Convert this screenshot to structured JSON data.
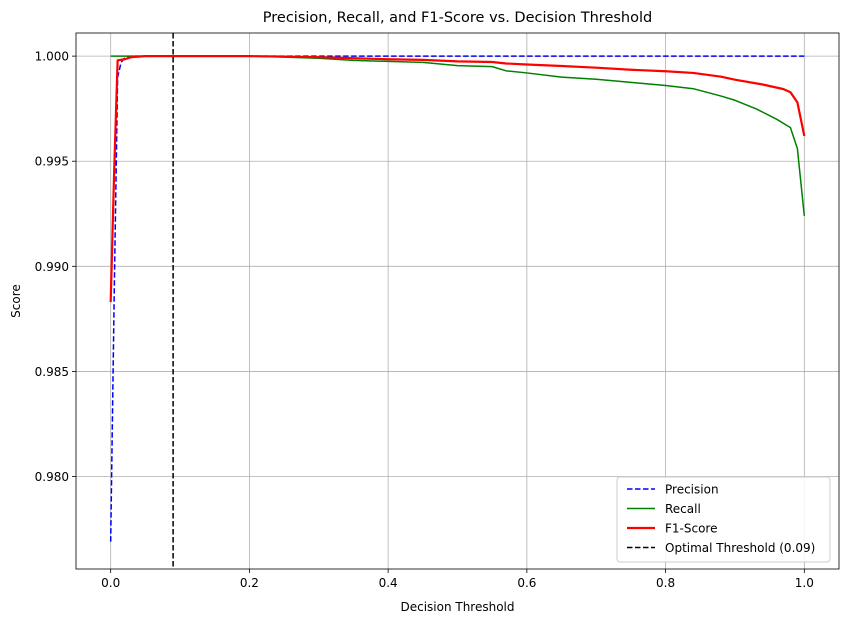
{
  "chart_data": {
    "type": "line",
    "title": "Precision, Recall, and F1-Score vs. Decision Threshold",
    "xlabel": "Decision Threshold",
    "ylabel": "Score",
    "xlim": [
      -0.05,
      1.05
    ],
    "ylim": [
      0.9756,
      1.0011
    ],
    "xticks": [
      0.0,
      0.2,
      0.4,
      0.6,
      0.8,
      1.0
    ],
    "xtick_labels": [
      "0.0",
      "0.2",
      "0.4",
      "0.6",
      "0.8",
      "1.0"
    ],
    "yticks": [
      0.98,
      0.985,
      0.99,
      0.995,
      1.0
    ],
    "ytick_labels": [
      "0.980",
      "0.985",
      "0.990",
      "0.995",
      "1.000"
    ],
    "grid": true,
    "legend_position": "bottom-right",
    "series": [
      {
        "name": "Precision",
        "color": "#0000ff",
        "style": "dashed",
        "x": [
          0.0,
          0.005,
          0.01,
          0.015,
          0.02,
          0.03,
          0.05,
          0.1,
          0.2,
          0.4,
          0.6,
          0.8,
          1.0
        ],
        "y": [
          0.9769,
          0.9885,
          0.999,
          0.9997,
          0.9999,
          1.0,
          1.0,
          1.0,
          1.0,
          1.0,
          1.0,
          1.0,
          1.0
        ]
      },
      {
        "name": "Recall",
        "color": "#008000",
        "style": "solid",
        "x": [
          0.0,
          0.05,
          0.1,
          0.15,
          0.2,
          0.25,
          0.3,
          0.35,
          0.4,
          0.45,
          0.5,
          0.55,
          0.57,
          0.6,
          0.65,
          0.7,
          0.75,
          0.8,
          0.84,
          0.88,
          0.9,
          0.93,
          0.96,
          0.98,
          0.99,
          1.0
        ],
        "y": [
          1.0,
          1.0,
          1.0,
          1.0,
          1.0,
          0.99995,
          0.9999,
          0.9998,
          0.99975,
          0.9997,
          0.99955,
          0.9995,
          0.9993,
          0.9992,
          0.999,
          0.9989,
          0.99875,
          0.9986,
          0.99845,
          0.9981,
          0.9979,
          0.9975,
          0.997,
          0.9966,
          0.9956,
          0.9924
        ]
      },
      {
        "name": "F1-Score",
        "color": "#ff0000",
        "style": "solid",
        "x": [
          0.0,
          0.005,
          0.01,
          0.02,
          0.03,
          0.05,
          0.1,
          0.2,
          0.25,
          0.3,
          0.35,
          0.4,
          0.45,
          0.5,
          0.55,
          0.57,
          0.6,
          0.65,
          0.7,
          0.75,
          0.8,
          0.84,
          0.88,
          0.9,
          0.94,
          0.97,
          0.98,
          0.99,
          1.0
        ],
        "y": [
          0.9883,
          0.9945,
          0.9998,
          0.99985,
          0.99995,
          1.0,
          1.0,
          1.0,
          0.99998,
          0.99995,
          0.9999,
          0.99985,
          0.99982,
          0.99975,
          0.99972,
          0.99965,
          0.9996,
          0.99953,
          0.99945,
          0.99935,
          0.99928,
          0.9992,
          0.99902,
          0.99888,
          0.99865,
          0.99843,
          0.99828,
          0.9978,
          0.9962
        ]
      }
    ],
    "vlines": [
      {
        "name": "Optimal Threshold (0.09)",
        "x": 0.09,
        "color": "#000000",
        "style": "dashed"
      }
    ]
  }
}
